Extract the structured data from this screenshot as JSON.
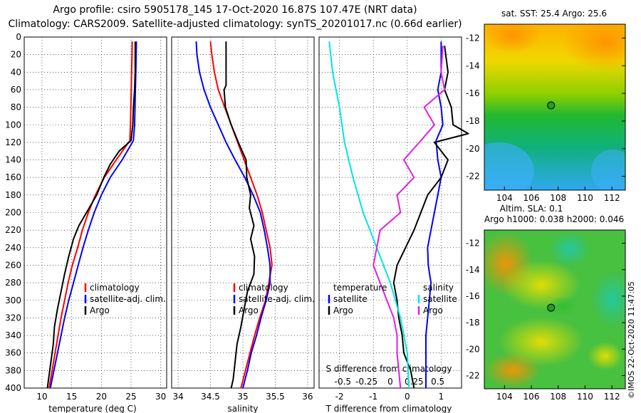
{
  "header": {
    "line1": "Argo profile: csiro 5905178_145 17-Oct-2020 16.87S 107.47E (NRT data)",
    "line2": "Climatology: CARS2009. Satellite-adjusted climatology: synTS_20201017.nc (0.66d earlier)"
  },
  "stamp": "©IMOS 22-Oct-2020 11:47:05",
  "colors": {
    "climatology": "#ff0000",
    "satellite": "#0000ff",
    "argo": "#000000",
    "sat_temp_diff": "#0000ff",
    "sat_sal_diff": "#00e5e5",
    "argo_sal_diff": "#e020e0"
  },
  "chart_data": [
    {
      "type": "line",
      "id": "temperature",
      "xlabel": "temperature (deg C)",
      "ylabel": "",
      "xlim": [
        7,
        31
      ],
      "ylim": [
        400,
        0
      ],
      "xticks": [
        10,
        15,
        20,
        25,
        30
      ],
      "yticks": [
        0,
        20,
        40,
        60,
        80,
        100,
        120,
        140,
        160,
        180,
        200,
        220,
        240,
        260,
        280,
        300,
        320,
        340,
        360,
        380,
        400
      ],
      "legend": [
        "climatology",
        "satellite-adj. clim.",
        "Argo"
      ],
      "series": [
        {
          "name": "climatology",
          "key": "climatology",
          "points": [
            [
              25.2,
              5
            ],
            [
              25.1,
              40
            ],
            [
              25.0,
              70
            ],
            [
              24.9,
              100
            ],
            [
              24.8,
              118
            ],
            [
              22.5,
              140
            ],
            [
              20.5,
              160
            ],
            [
              19.0,
              180
            ],
            [
              17.8,
              200
            ],
            [
              16.8,
              220
            ],
            [
              16.0,
              240
            ],
            [
              15.1,
              260
            ],
            [
              14.4,
              280
            ],
            [
              13.8,
              300
            ],
            [
              13.2,
              320
            ],
            [
              12.7,
              340
            ],
            [
              12.2,
              360
            ],
            [
              11.7,
              380
            ],
            [
              11.2,
              400
            ]
          ]
        },
        {
          "name": "satellite-adj. clim.",
          "key": "satellite",
          "points": [
            [
              25.9,
              5
            ],
            [
              25.8,
              40
            ],
            [
              25.7,
              70
            ],
            [
              25.6,
              100
            ],
            [
              25.4,
              118
            ],
            [
              23.5,
              140
            ],
            [
              21.5,
              160
            ],
            [
              20.0,
              180
            ],
            [
              18.8,
              200
            ],
            [
              17.8,
              220
            ],
            [
              16.9,
              240
            ],
            [
              16.1,
              260
            ],
            [
              15.3,
              280
            ],
            [
              14.5,
              300
            ],
            [
              13.8,
              320
            ],
            [
              13.2,
              340
            ],
            [
              12.6,
              360
            ],
            [
              12.0,
              380
            ],
            [
              11.4,
              400
            ]
          ]
        },
        {
          "name": "Argo",
          "key": "argo",
          "points": [
            [
              25.7,
              5
            ],
            [
              25.7,
              40
            ],
            [
              25.6,
              60
            ],
            [
              25.4,
              80
            ],
            [
              25.3,
              100
            ],
            [
              25.0,
              118
            ],
            [
              23.0,
              130
            ],
            [
              21.5,
              145
            ],
            [
              20.4,
              160
            ],
            [
              19.2,
              180
            ],
            [
              17.5,
              200
            ],
            [
              16.2,
              215
            ],
            [
              15.3,
              230
            ],
            [
              14.5,
              250
            ],
            [
              13.8,
              270
            ],
            [
              13.2,
              290
            ],
            [
              12.6,
              310
            ],
            [
              12.1,
              330
            ],
            [
              11.9,
              350
            ],
            [
              11.5,
              370
            ],
            [
              11.2,
              385
            ],
            [
              10.9,
              400
            ]
          ]
        }
      ]
    },
    {
      "type": "line",
      "id": "salinity",
      "xlabel": "salinity",
      "ylabel": "",
      "xlim": [
        33.9,
        36.1
      ],
      "ylim": [
        400,
        0
      ],
      "xticks": [
        34,
        34.5,
        35,
        35.5,
        36
      ],
      "legend": [
        "climatology",
        "satellite-adj. clim.",
        "Argo"
      ],
      "series": [
        {
          "name": "climatology",
          "key": "climatology",
          "points": [
            [
              34.5,
              5
            ],
            [
              34.52,
              20
            ],
            [
              34.56,
              40
            ],
            [
              34.62,
              60
            ],
            [
              34.72,
              80
            ],
            [
              34.82,
              100
            ],
            [
              34.92,
              120
            ],
            [
              35.02,
              140
            ],
            [
              35.12,
              160
            ],
            [
              35.22,
              180
            ],
            [
              35.3,
              200
            ],
            [
              35.36,
              220
            ],
            [
              35.42,
              240
            ],
            [
              35.45,
              260
            ],
            [
              35.4,
              280
            ],
            [
              35.35,
              300
            ],
            [
              35.26,
              320
            ],
            [
              35.18,
              340
            ],
            [
              35.11,
              360
            ],
            [
              35.04,
              380
            ],
            [
              34.97,
              400
            ]
          ]
        },
        {
          "name": "satellite-adj. clim.",
          "key": "satellite",
          "points": [
            [
              34.28,
              5
            ],
            [
              34.29,
              20
            ],
            [
              34.33,
              40
            ],
            [
              34.4,
              60
            ],
            [
              34.5,
              80
            ],
            [
              34.62,
              100
            ],
            [
              34.74,
              120
            ],
            [
              34.88,
              140
            ],
            [
              35.03,
              160
            ],
            [
              35.16,
              180
            ],
            [
              35.27,
              200
            ],
            [
              35.33,
              220
            ],
            [
              35.38,
              240
            ],
            [
              35.42,
              260
            ],
            [
              35.42,
              280
            ],
            [
              35.36,
              300
            ],
            [
              35.28,
              320
            ],
            [
              35.21,
              340
            ],
            [
              35.13,
              360
            ],
            [
              35.07,
              380
            ],
            [
              35.0,
              400
            ]
          ]
        },
        {
          "name": "Argo",
          "key": "argo",
          "points": [
            [
              34.74,
              5
            ],
            [
              34.74,
              55
            ],
            [
              34.71,
              60
            ],
            [
              34.73,
              80
            ],
            [
              34.82,
              100
            ],
            [
              34.93,
              120
            ],
            [
              35.05,
              140
            ],
            [
              35.06,
              160
            ],
            [
              35.12,
              180
            ],
            [
              35.1,
              195
            ],
            [
              35.17,
              215
            ],
            [
              35.12,
              230
            ],
            [
              35.18,
              250
            ],
            [
              35.17,
              270
            ],
            [
              35.07,
              290
            ],
            [
              35.02,
              310
            ],
            [
              34.97,
              330
            ],
            [
              34.91,
              350
            ],
            [
              34.88,
              370
            ],
            [
              34.85,
              390
            ],
            [
              34.82,
              400
            ]
          ]
        }
      ]
    },
    {
      "type": "line",
      "id": "difference",
      "xlabel": "T difference from climatology",
      "ylabel": "",
      "xlim": [
        -2.6,
        1.6
      ],
      "ylim": [
        400,
        0
      ],
      "xticks": [
        -2,
        -1,
        0,
        1
      ],
      "top_axis": {
        "label": "S difference from climatology",
        "ticks": [
          -0.5,
          -0.25,
          0,
          0.25,
          0.5
        ]
      },
      "legend_left_title": "temperature",
      "legend_right_title": "salinity",
      "legend_left": [
        "satellite",
        "Argo"
      ],
      "legend_right": [
        "satellite",
        "Argo"
      ],
      "series": [
        {
          "name": "satellite",
          "group": "temperature",
          "key": "sat_temp_diff",
          "points": [
            [
              1.0,
              5
            ],
            [
              1.0,
              40
            ],
            [
              0.9,
              60
            ],
            [
              1.0,
              80
            ],
            [
              1.05,
              100
            ],
            [
              0.85,
              118
            ],
            [
              0.9,
              140
            ],
            [
              1.0,
              160
            ],
            [
              0.9,
              180
            ],
            [
              0.8,
              200
            ],
            [
              0.7,
              220
            ],
            [
              0.6,
              240
            ],
            [
              0.62,
              260
            ],
            [
              0.7,
              280
            ],
            [
              0.65,
              300
            ],
            [
              0.6,
              320
            ],
            [
              0.55,
              340
            ],
            [
              0.55,
              360
            ],
            [
              0.55,
              380
            ],
            [
              0.55,
              400
            ]
          ]
        },
        {
          "name": "Argo",
          "group": "temperature",
          "key": "argo",
          "points": [
            [
              1.1,
              10
            ],
            [
              1.2,
              40
            ],
            [
              1.1,
              60
            ],
            [
              1.3,
              80
            ],
            [
              1.35,
              100
            ],
            [
              1.8,
              110
            ],
            [
              0.8,
              120
            ],
            [
              1.2,
              140
            ],
            [
              1.0,
              160
            ],
            [
              0.6,
              180
            ],
            [
              0.4,
              200
            ],
            [
              0.2,
              220
            ],
            [
              -0.05,
              240
            ],
            [
              -0.3,
              260
            ],
            [
              -0.4,
              280
            ],
            [
              -0.3,
              300
            ],
            [
              -0.25,
              320
            ],
            [
              -0.15,
              340
            ],
            [
              -0.1,
              360
            ],
            [
              0.1,
              380
            ],
            [
              0.2,
              400
            ]
          ]
        },
        {
          "name": "satellite",
          "group": "salinity",
          "key": "sat_sal_diff",
          "points": [
            [
              -2.3,
              5
            ],
            [
              -2.2,
              40
            ],
            [
              -2.0,
              80
            ],
            [
              -1.85,
              120
            ],
            [
              -1.6,
              160
            ],
            [
              -1.3,
              200
            ],
            [
              -0.9,
              240
            ],
            [
              -0.5,
              280
            ],
            [
              -0.2,
              320
            ],
            [
              0.0,
              360
            ],
            [
              0.05,
              400
            ]
          ]
        },
        {
          "name": "Argo",
          "group": "salinity",
          "key": "argo_sal_diff",
          "points": [
            [
              1.05,
              10
            ],
            [
              1.0,
              40
            ],
            [
              1.1,
              60
            ],
            [
              0.5,
              80
            ],
            [
              0.8,
              100
            ],
            [
              0.4,
              118
            ],
            [
              -0.1,
              140
            ],
            [
              0.2,
              160
            ],
            [
              -0.3,
              180
            ],
            [
              -0.2,
              200
            ],
            [
              -0.8,
              220
            ],
            [
              -0.9,
              240
            ],
            [
              -1.0,
              260
            ],
            [
              -0.8,
              280
            ],
            [
              -0.6,
              300
            ],
            [
              -0.4,
              320
            ],
            [
              -0.3,
              340
            ],
            [
              -0.3,
              360
            ],
            [
              -0.25,
              380
            ],
            [
              -0.2,
              400
            ]
          ]
        }
      ]
    },
    {
      "type": "heatmap",
      "id": "sst-map",
      "title": "sat. SST: 25.4 Argo: 25.6",
      "xlim": [
        102.5,
        113
      ],
      "ylim": [
        -23,
        -11
      ],
      "xticks": [
        104,
        106,
        108,
        110,
        112
      ],
      "yticks": [
        -12,
        -14,
        -16,
        -18,
        -20,
        -22
      ],
      "marker": [
        107.47,
        -16.87
      ],
      "caption": "Altim. SLA: 0.1"
    },
    {
      "type": "heatmap",
      "id": "sla-map",
      "title": "Argo h1000: 0.038 h2000: 0.046",
      "xlim": [
        102.5,
        113
      ],
      "ylim": [
        -23,
        -11
      ],
      "xticks": [
        104,
        106,
        108,
        110,
        112
      ],
      "yticks": [
        -12,
        -14,
        -16,
        -18,
        -20,
        -22
      ],
      "marker": [
        107.47,
        -16.87
      ]
    }
  ]
}
